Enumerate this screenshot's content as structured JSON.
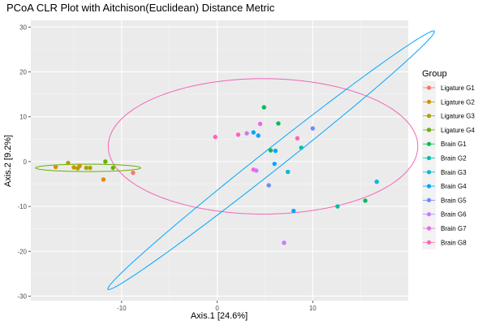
{
  "chart_data": {
    "type": "scatter",
    "title": "PCoA CLR Plot with Aitchison(Euclidean) Distance Metric",
    "xlabel": "Axis.1   [24.6%]",
    "ylabel": "Axis.2   [9.2%]",
    "xlim": [
      -19.5,
      20
    ],
    "ylim": [
      -31,
      31.5
    ],
    "xticks": [
      -10,
      0,
      10
    ],
    "yticks": [
      -30,
      -20,
      -10,
      0,
      10,
      20,
      30
    ],
    "grid": true,
    "legend": {
      "title": "Group",
      "placement": "right"
    },
    "series": [
      {
        "name": "Ligature G1",
        "color": "#F8766D",
        "points": [
          [
            -8.8,
            -2.5
          ]
        ]
      },
      {
        "name": "Ligature G2",
        "color": "#DB8E00",
        "points": [
          [
            -16.9,
            -1.2
          ],
          [
            -15.0,
            -1.3
          ],
          [
            -14.4,
            -1.0
          ],
          [
            -11.9,
            -4.0
          ]
        ]
      },
      {
        "name": "Ligature G3",
        "color": "#AEA200",
        "points": [
          [
            -15.6,
            -0.3
          ],
          [
            -14.6,
            -1.5
          ],
          [
            -13.7,
            -1.4
          ],
          [
            -13.3,
            -1.4
          ]
        ]
      },
      {
        "name": "Ligature G4",
        "color": "#64B200",
        "points": [
          [
            -11.7,
            0.0
          ],
          [
            -10.9,
            -1.4
          ]
        ]
      },
      {
        "name": "Brain G1",
        "color": "#00BD5C",
        "points": [
          [
            4.9,
            12.1
          ],
          [
            6.4,
            8.5
          ],
          [
            5.6,
            2.5
          ],
          [
            15.5,
            -8.7
          ]
        ]
      },
      {
        "name": "Brain G2",
        "color": "#00C1A7",
        "points": [
          [
            8.8,
            3.1
          ],
          [
            12.6,
            -10.0
          ]
        ]
      },
      {
        "name": "Brain G3",
        "color": "#00BADE",
        "points": [
          [
            7.4,
            -2.3
          ],
          [
            16.7,
            -4.5
          ]
        ]
      },
      {
        "name": "Brain G4",
        "color": "#00A6FF",
        "points": [
          [
            3.8,
            6.5
          ],
          [
            4.3,
            5.8
          ],
          [
            6.1,
            2.4
          ],
          [
            6.0,
            -0.5
          ],
          [
            8.0,
            -11.0
          ]
        ]
      },
      {
        "name": "Brain G5",
        "color": "#6E8CFF",
        "points": [
          [
            10.0,
            7.4
          ],
          [
            5.4,
            -5.3
          ]
        ]
      },
      {
        "name": "Brain G6",
        "color": "#C77CFF",
        "points": [
          [
            3.1,
            6.3
          ],
          [
            4.1,
            -2.0
          ],
          [
            7.0,
            -18.1
          ]
        ]
      },
      {
        "name": "Brain G7",
        "color": "#EF67EB",
        "points": [
          [
            4.5,
            8.4
          ],
          [
            3.8,
            -1.8
          ]
        ]
      },
      {
        "name": "Brain G8",
        "color": "#FF63B6",
        "points": [
          [
            -0.2,
            5.5
          ],
          [
            2.2,
            6.0
          ],
          [
            8.4,
            5.2
          ]
        ]
      }
    ],
    "ellipses": [
      {
        "color": "#F266B6",
        "cx": 4.8,
        "cy": 3.4,
        "rx": 16.2,
        "ry": 15.1,
        "rotate": 0
      },
      {
        "color": "#00A6FF",
        "cx": 5.65,
        "cy": 0.3,
        "rx": 33.5,
        "ry": 1.5,
        "rotate": 59.4
      },
      {
        "color": "#64B200",
        "cx": -13.5,
        "cy": -1.4,
        "rx": 5.5,
        "ry": 0.82,
        "rotate": 0
      }
    ]
  }
}
